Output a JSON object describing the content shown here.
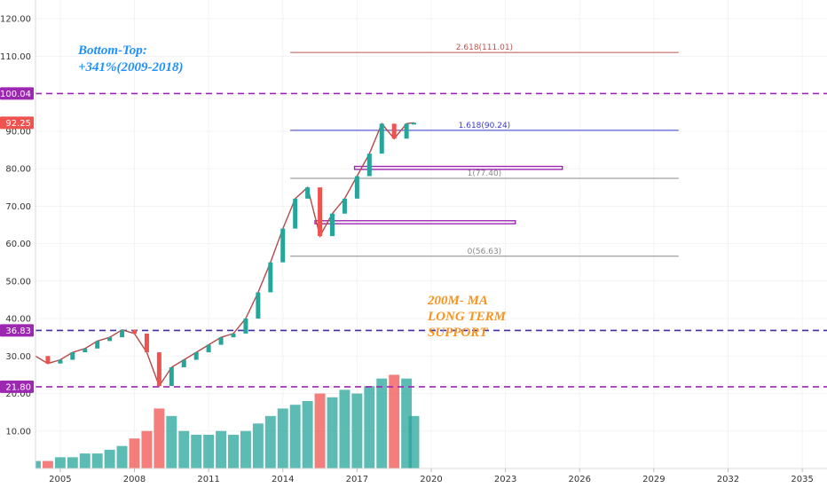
{
  "chart_data": {
    "type": "candlestick",
    "y_axis": {
      "ticks": [
        "10.00",
        "20.00",
        "30.00",
        "40.00",
        "50.00",
        "60.00",
        "70.00",
        "80.00",
        "90.00",
        "110.00",
        "120.00"
      ],
      "range": [
        0,
        125
      ]
    },
    "x_axis": {
      "ticks": [
        "2005",
        "2008",
        "2011",
        "2014",
        "2017",
        "2020",
        "2023",
        "2026",
        "2029",
        "2032",
        "2035"
      ],
      "range": [
        2004,
        2036
      ]
    },
    "price_badges": [
      {
        "label": "100.04",
        "value": 100.04,
        "color": "#9c27b0"
      },
      {
        "label": "92.25",
        "value": 92.25,
        "color": "#ef5350"
      },
      {
        "label": "36.83",
        "value": 36.83,
        "color": "#9c27b0"
      },
      {
        "label": "21.80",
        "value": 21.8,
        "color": "#9c27b0"
      }
    ],
    "dashed_levels": [
      {
        "value": 100.04,
        "color": "#9c27b0"
      },
      {
        "value": 36.83,
        "color": "#3f2f9f"
      },
      {
        "value": 21.8,
        "color": "#9c27b0"
      }
    ],
    "fib_levels": [
      {
        "label": "2.618(111.01)",
        "value": 111.01,
        "color": "#c0504d",
        "x_start": 2014.3,
        "x_end": 2030
      },
      {
        "label": "1.618(90.24)",
        "value": 90.24,
        "color": "#3a3acc",
        "x_start": 2014.3,
        "x_end": 2030
      },
      {
        "label": "1(77.40)",
        "value": 77.4,
        "color": "#888888",
        "x_start": 2014.3,
        "x_end": 2030
      },
      {
        "label": "0(56.63)",
        "value": 56.63,
        "color": "#888888",
        "x_start": 2014.3,
        "x_end": 2030
      }
    ],
    "zones": [
      {
        "y1": 79.8,
        "y2": 80.6,
        "x1": 2016.9,
        "x2": 2025.3
      },
      {
        "y1": 65.3,
        "y2": 66.1,
        "x1": 2015.3,
        "x2": 2023.4
      }
    ],
    "annotations": [
      {
        "text": "Bottom-Top:",
        "color": "#1e90ff"
      },
      {
        "text": "+341%(2009-2018)",
        "color": "#1e90ff"
      },
      {
        "text": "200M- MA",
        "color": "#f7931e"
      },
      {
        "text": "LONG TERM",
        "color": "#f7931e"
      },
      {
        "text": "SUPPORT",
        "color": "#f7931e"
      }
    ],
    "price_series": {
      "name": "",
      "x": [
        2004,
        2004.5,
        2005,
        2005.5,
        2006,
        2006.5,
        2007,
        2007.5,
        2008,
        2008.5,
        2009,
        2009.5,
        2010,
        2010.5,
        2011,
        2011.5,
        2012,
        2012.5,
        2013,
        2013.5,
        2014,
        2014.5,
        2015,
        2015.5,
        2016,
        2016.5,
        2017,
        2017.5,
        2018,
        2018.5,
        2019,
        2019.3
      ],
      "y": [
        30,
        28,
        29,
        31,
        32,
        34,
        35,
        37,
        36,
        31,
        22,
        27,
        29,
        31,
        33,
        35,
        36,
        40,
        47,
        55,
        64,
        72,
        75,
        62,
        68,
        72,
        78,
        84,
        92,
        88,
        92,
        92.25
      ]
    },
    "volume_scale": {
      "max_value": 35
    },
    "volume": [
      2,
      2,
      3,
      3,
      4,
      4,
      5,
      6,
      8,
      10,
      16,
      14,
      10,
      9,
      9,
      10,
      9,
      10,
      12,
      14,
      16,
      17,
      18,
      20,
      19,
      21,
      20,
      22,
      24,
      25,
      24,
      14
    ]
  }
}
